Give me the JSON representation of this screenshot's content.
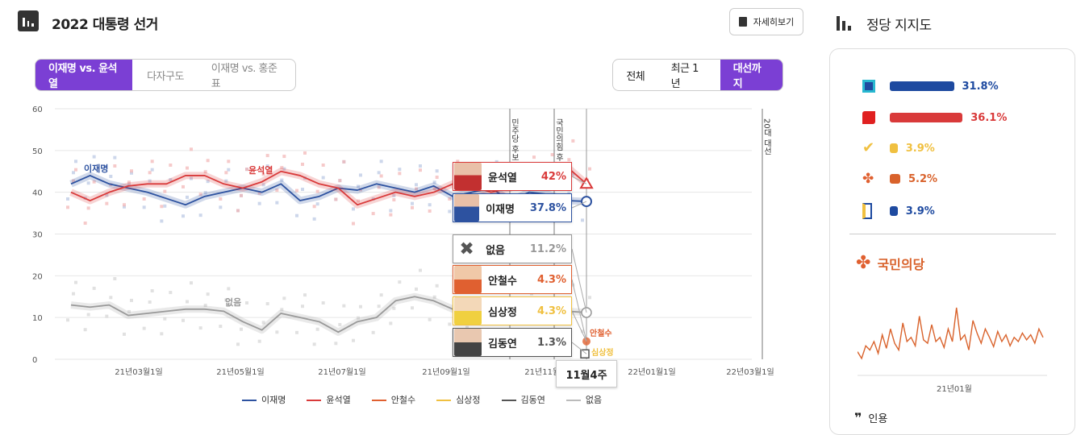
{
  "header": {
    "title": "2022 대통령 선거",
    "detail_button": "자세히보기"
  },
  "tabs": {
    "items": [
      "이재명 vs. 윤석열",
      "다자구도",
      "이재명 vs. 홍준표"
    ],
    "active": 0
  },
  "range_tabs": {
    "items": [
      "전체",
      "최근 1년",
      "대선까지"
    ],
    "active": 2
  },
  "chart_data": {
    "type": "line",
    "ylim": [
      0,
      60
    ],
    "yticks": [
      "0",
      "10",
      "20",
      "30",
      "40",
      "50",
      "60"
    ],
    "xticks": [
      "21년03월1일",
      "21년05월1일",
      "21년07월1일",
      "21년09월1일",
      "21년11월1일",
      "22년01월1일",
      "22년03월1일"
    ],
    "events": [
      "민주당 후보 확정",
      "국민의힘 후보 확정",
      "20대 대선"
    ],
    "series": [
      {
        "name": "이재명",
        "color": "#2d52a0",
        "values": [
          42,
          44,
          42,
          41,
          40,
          38.5,
          37,
          39,
          40,
          41,
          40,
          42,
          38,
          39,
          41,
          40.5,
          42,
          41,
          40,
          41.5,
          39,
          40,
          41,
          38,
          40,
          39.5,
          38,
          37.8
        ]
      },
      {
        "name": "윤석열",
        "color": "#d93a3a",
        "values": [
          40,
          38,
          40,
          41.5,
          42,
          42,
          44,
          44,
          42,
          41,
          42.5,
          45,
          44,
          42,
          41,
          37,
          38.5,
          40,
          39,
          40,
          42,
          41.5,
          40,
          41,
          43,
          44.5,
          46,
          42
        ]
      },
      {
        "name": "없음",
        "color": "#999999",
        "values": [
          13,
          12.5,
          13,
          10.5,
          11,
          11.5,
          12,
          12,
          11.5,
          9,
          7,
          11,
          10,
          9,
          6.5,
          9,
          10,
          14,
          15,
          14,
          12,
          13,
          12,
          13.5,
          13,
          12,
          11.5,
          11.2
        ]
      },
      {
        "name": "안철수",
        "color": "#e06030",
        "values": [
          4.3
        ]
      },
      {
        "name": "심상정",
        "color": "#f0c040",
        "values": [
          4.3
        ]
      },
      {
        "name": "김동연",
        "color": "#555555",
        "values": [
          1.3
        ]
      }
    ],
    "legend": [
      "이재명",
      "윤석열",
      "안철수",
      "심상정",
      "김동연",
      "없음"
    ],
    "series_labels": {
      "lee": "이재명",
      "yoon": "윤석열",
      "none": "없음",
      "ahn": "안철수",
      "sim": "심상정"
    }
  },
  "tooltip": {
    "week": "11월4주",
    "rows": [
      {
        "name": "윤석열",
        "pct": "42%",
        "color": "#d93a3a"
      },
      {
        "name": "이재명",
        "pct": "37.8%",
        "color": "#2d52a0"
      },
      {
        "name": "없음",
        "pct": "11.2%",
        "color": "#999999"
      },
      {
        "name": "안철수",
        "pct": "4.3%",
        "color": "#e06030"
      },
      {
        "name": "심상정",
        "pct": "4.3%",
        "color": "#f0c040"
      },
      {
        "name": "김동연",
        "pct": "1.3%",
        "color": "#555555"
      }
    ]
  },
  "sidebar": {
    "title": "정당 지지도",
    "parties": [
      {
        "pct": "31.8%",
        "value": 31.8,
        "color": "#1e4aa0",
        "icon": "democratic-party-icon"
      },
      {
        "pct": "36.1%",
        "value": 36.1,
        "color": "#d93a3a",
        "icon": "people-power-party-icon"
      },
      {
        "pct": "3.9%",
        "value": 3.9,
        "color": "#f0c040",
        "icon": "justice-party-icon"
      },
      {
        "pct": "5.2%",
        "value": 5.2,
        "color": "#d9622b",
        "icon": "peoples-party-icon"
      },
      {
        "pct": "3.9%",
        "value": 3.9,
        "color": "#1e4aa0",
        "icon": "open-democratic-party-icon"
      }
    ],
    "selected_party": "국민의당",
    "mini_xtick": "21년01월",
    "quote_label": "인용"
  }
}
